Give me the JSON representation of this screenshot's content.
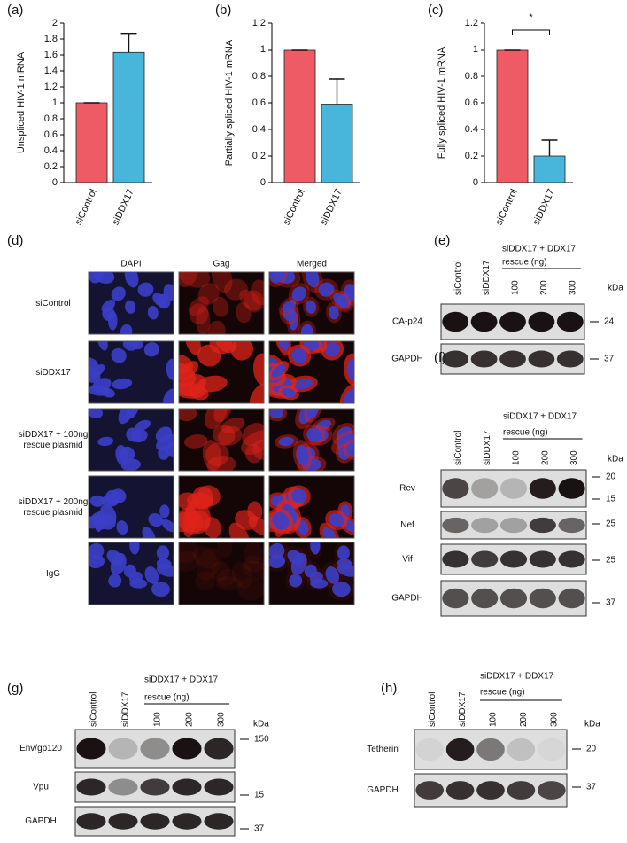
{
  "chart_data": [
    {
      "type": "bar",
      "label": "(a)",
      "ylabel": "Unspliced HIV-1 mRNA",
      "categories": [
        "siControl",
        "siDDX17"
      ],
      "values": [
        1,
        1.63
      ],
      "errors": [
        0,
        0.24
      ],
      "colors": [
        "#ef5b64",
        "#48b5da"
      ],
      "ylim": [
        0,
        2
      ],
      "yticks": [
        0,
        0.2,
        0.4,
        0.6,
        0.8,
        1,
        1.2,
        1.4,
        1.6,
        1.8,
        2
      ]
    },
    {
      "type": "bar",
      "label": "(b)",
      "ylabel": "Partially spliced HIV-1 mRNA",
      "categories": [
        "siControl",
        "siDDX17"
      ],
      "values": [
        1,
        0.59
      ],
      "errors": [
        0,
        0.19
      ],
      "colors": [
        "#ef5b64",
        "#48b5da"
      ],
      "ylim": [
        0,
        1.2
      ],
      "yticks": [
        0,
        0.2,
        0.4,
        0.6,
        0.8,
        1,
        1.2
      ]
    },
    {
      "type": "bar",
      "label": "(c)",
      "ylabel": "Fully spliced HIV-1 mRNA",
      "categories": [
        "siControl",
        "siDDX17"
      ],
      "values": [
        1,
        0.2
      ],
      "errors": [
        0,
        0.12
      ],
      "colors": [
        "#ef5b64",
        "#48b5da"
      ],
      "ylim": [
        0,
        1.2
      ],
      "yticks": [
        0,
        0.2,
        0.4,
        0.6,
        0.8,
        1,
        1.2
      ],
      "significance": "*"
    }
  ],
  "microscopy": {
    "label": "(d)",
    "columns": [
      "DAPI",
      "Gag",
      "Merged"
    ],
    "rows": [
      [
        "siControl"
      ],
      [
        "siDDX17"
      ],
      [
        "siDDX17 + 100ng",
        "rescue plasmid"
      ],
      [
        "siDDX17 + 200ng",
        "rescue plasmid"
      ],
      [
        "IgG"
      ]
    ]
  },
  "blots": [
    {
      "label": "(e)",
      "header": [
        "siDDX17 + DDX17",
        "rescue (ng)"
      ],
      "unit": "kDa",
      "lanes": [
        "siControl",
        "siDDX17",
        "100",
        "200",
        "300"
      ],
      "rows": [
        {
          "name": "CA-p24",
          "markers": [
            24
          ]
        },
        {
          "name": "GAPDH",
          "markers": [
            37
          ]
        }
      ]
    },
    {
      "label": "(f)",
      "header": [
        "siDDX17 + DDX17",
        "rescue (ng)"
      ],
      "unit": "kDa",
      "lanes": [
        "siControl",
        "siDDX17",
        "100",
        "200",
        "300"
      ],
      "rows": [
        {
          "name": "Rev",
          "markers": [
            20,
            15
          ]
        },
        {
          "name": "Nef",
          "markers": [
            25
          ]
        },
        {
          "name": "Vif",
          "markers": [
            25
          ]
        },
        {
          "name": "GAPDH",
          "markers": [
            37
          ]
        }
      ]
    },
    {
      "label": "(g)",
      "header": [
        "siDDX17 + DDX17",
        "rescue (ng)"
      ],
      "unit": "kDa",
      "lanes": [
        "siControl",
        "siDDX17",
        "100",
        "200",
        "300"
      ],
      "rows": [
        {
          "name": "Env/gp120",
          "markers": [
            150
          ]
        },
        {
          "name": "Vpu",
          "markers": [
            15
          ]
        },
        {
          "name": "GAPDH",
          "markers": [
            37
          ]
        }
      ]
    },
    {
      "label": "(h)",
      "header": [
        "siDDX17 + DDX17",
        "rescue (ng)"
      ],
      "unit": "kDa",
      "lanes": [
        "siControl",
        "siDDX17",
        "100",
        "200",
        "300"
      ],
      "rows": [
        {
          "name": "Tetherin",
          "markers": [
            20
          ]
        },
        {
          "name": "GAPDH",
          "markers": [
            37
          ]
        }
      ]
    }
  ]
}
